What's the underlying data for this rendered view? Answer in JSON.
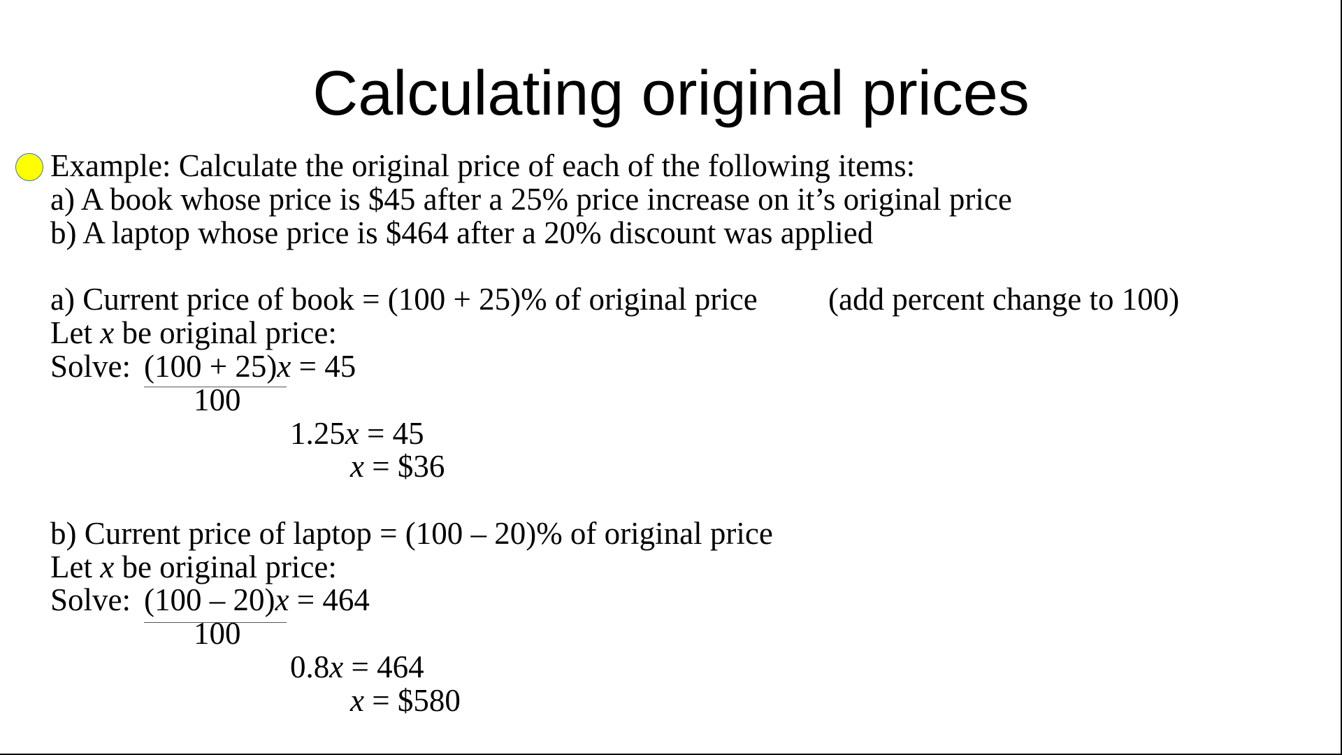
{
  "title": "Calculating original prices",
  "bullet_color": "#ffff00",
  "intro": {
    "line1": "Example: Calculate the original price of each of the following items:",
    "line2": "a) A book whose price is $45 after a 25% price increase on it’s original price",
    "line3": "b) A laptop whose price is $464 after a 20% discount was applied"
  },
  "part_a": {
    "statement": "a) Current price of book = (100 + 25)% of original price",
    "note": "(add percent change to 100)",
    "let_pre": "Let ",
    "var": "x",
    "let_post": " be original price:",
    "solve_label": "Solve:",
    "numerator": "(100 + 25)",
    "eq_rhs": " = 45",
    "denominator": "100",
    "step1_coef": "1.25",
    "step1_rhs": " = 45",
    "result_rhs": " = $36"
  },
  "part_b": {
    "statement": "b) Current price of laptop = (100 – 20)% of original price",
    "let_pre": "Let ",
    "var": "x",
    "let_post": " be original price:",
    "solve_label": "Solve:",
    "numerator": "(100 – 20)",
    "eq_rhs": " = 464",
    "denominator": "100",
    "step1_coef": "0.8",
    "step1_rhs": " = 464",
    "result_rhs": " = $580"
  }
}
